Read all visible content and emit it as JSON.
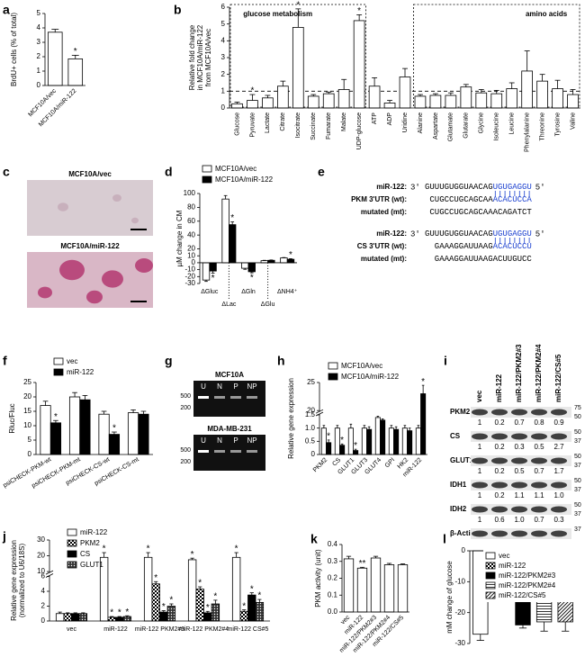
{
  "chart_data": [
    {
      "panel": "a",
      "type": "bar",
      "ylabel": "BrdU+ cells (% of total)",
      "categories": [
        "MCF10A/vec",
        "MCF10A/miR-122"
      ],
      "values": [
        3.7,
        1.85
      ],
      "errors": [
        0.2,
        0.25
      ],
      "stars": [
        null,
        "*"
      ],
      "color": "#ffffff",
      "ylim": [
        0,
        5
      ],
      "yticks": [
        0,
        1,
        2,
        3,
        4,
        5
      ]
    },
    {
      "panel": "b",
      "type": "bar",
      "ylabel": [
        "Relative fold change",
        "in MCF10A/miR-122",
        "from MCF10A/vec"
      ],
      "categories": [
        "Glucose",
        "Pyruvate",
        "Lactate",
        "Citrate",
        "Isocitrate",
        "Succinate",
        "Fumarate",
        "Malate",
        "UDP-glucose",
        "ATP",
        "ADP",
        "Uridine",
        "Alanine",
        "Aspartate",
        "Glutamate",
        "Glutarate",
        "Glycine",
        "Isoleucine",
        "Leucine",
        "Phenylalanine",
        "Threonine",
        "Tyrosine",
        "Valine"
      ],
      "values": [
        0.25,
        0.45,
        0.6,
        1.3,
        4.8,
        0.7,
        0.85,
        1.1,
        5.2,
        1.3,
        0.3,
        1.85,
        0.7,
        0.75,
        0.75,
        1.25,
        0.9,
        0.85,
        1.15,
        2.2,
        1.6,
        1.15,
        0.8
      ],
      "errors": [
        0.1,
        0.35,
        0.15,
        0.3,
        1.1,
        0.1,
        0.1,
        0.6,
        0.35,
        0.5,
        0.15,
        0.5,
        0.1,
        0.1,
        0.15,
        0.15,
        0.2,
        0.2,
        0.35,
        1.2,
        0.4,
        0.5,
        0.3
      ],
      "stars": [
        null,
        "*",
        null,
        null,
        "*",
        null,
        null,
        null,
        "*",
        null,
        null,
        null,
        null,
        null,
        null,
        null,
        null,
        null,
        null,
        null,
        null,
        null,
        null
      ],
      "color": "#ffffff",
      "ylim": [
        0,
        6
      ],
      "yticks": [
        0,
        1,
        2,
        3,
        4,
        5,
        6
      ],
      "reference_line": 1,
      "groups": [
        "glucose metabolism",
        "amino acids"
      ]
    },
    {
      "panel": "d",
      "type": "bar",
      "ylabel": "µM change in CM",
      "categories": [
        "ΔGluc",
        "ΔLac",
        "ΔGln",
        "ΔGlu",
        "ΔNH4⁺"
      ],
      "series": [
        {
          "name": "MCF10A/vec",
          "color": "#ffffff",
          "values": [
            -25,
            92,
            -8,
            3,
            7
          ],
          "errors": [
            2,
            5,
            1.5,
            0.5,
            0.5
          ],
          "stars": [
            null,
            null,
            null,
            null,
            null
          ]
        },
        {
          "name": "MCF10A/miR-122",
          "color": "#000000",
          "values": [
            -12,
            55,
            -13,
            3.5,
            5
          ],
          "errors": [
            3,
            4,
            1.5,
            0.5,
            0.8
          ],
          "stars": [
            "*",
            "*",
            "*",
            null,
            "*"
          ]
        }
      ],
      "ylim": [
        -30,
        100
      ],
      "yticks": [
        -30,
        -20,
        -10,
        0,
        10,
        20,
        40,
        60,
        80,
        100
      ]
    },
    {
      "panel": "f",
      "type": "bar",
      "ylabel": "Rluc/Fluc",
      "categories": [
        "psiCHECK-PKM-wt",
        "psiCHECK-PKM-mt",
        "psiCHECK-CS-wt",
        "psiCHECK-CS-mt"
      ],
      "series": [
        {
          "name": "vec",
          "color": "#ffffff",
          "values": [
            17,
            20,
            14,
            14.5
          ],
          "errors": [
            1.5,
            1.5,
            1,
            1
          ],
          "stars": [
            null,
            null,
            null,
            null
          ]
        },
        {
          "name": "miR-122",
          "color": "#000000",
          "values": [
            11,
            19,
            7,
            14
          ],
          "errors": [
            0.8,
            1.5,
            0.8,
            1
          ],
          "stars": [
            "*",
            null,
            "*",
            null
          ]
        }
      ],
      "ylim": [
        0,
        25
      ],
      "yticks": [
        0,
        5,
        10,
        15,
        20,
        25
      ]
    },
    {
      "panel": "h",
      "type": "bar",
      "ylabel": "Relative gene expression",
      "categories": [
        "PKM2",
        "CS",
        "GLUT1",
        "GLUT3",
        "GLUT4",
        "GPI",
        "HK2",
        "miR-122"
      ],
      "series": [
        {
          "name": "MCF10A/vec",
          "color": "#ffffff",
          "values": [
            1,
            1,
            1,
            1,
            1.4,
            1,
            1,
            1
          ],
          "errors": [
            0.1,
            0.1,
            0.15,
            0.1,
            0.05,
            0.1,
            0.1,
            0.1
          ],
          "stars": [
            null,
            null,
            null,
            null,
            null,
            null,
            null,
            null
          ]
        },
        {
          "name": "MCF10A/miR-122",
          "color": "#000000",
          "values": [
            0.45,
            0.35,
            0.15,
            0.95,
            1.3,
            0.95,
            0.9,
            23
          ],
          "errors": [
            0.1,
            0.05,
            0.05,
            0.1,
            0.05,
            0.1,
            0.1,
            1.5
          ],
          "stars": [
            "*",
            "*",
            "*",
            null,
            null,
            null,
            null,
            "*"
          ]
        }
      ],
      "ylim": [
        0,
        25
      ],
      "yticks": [
        0,
        0.5,
        {
          "value": 1,
          "label": "1.0"
        },
        1.5,
        20,
        25
      ],
      "ybreak": [
        1.5,
        20
      ]
    },
    {
      "panel": "j",
      "type": "bar",
      "ylabel": [
        "Relative gene expression",
        "(normalized to U6/18S)"
      ],
      "categories": [
        "vec",
        "miR-122",
        "miR-122 PKM2#3",
        "miR-122 PKM2#4",
        "miR-122 CS#5"
      ],
      "series": [
        {
          "name": "miR-122",
          "color": "#ffffff",
          "values": [
            1,
            19,
            19,
            17.5,
            19
          ],
          "errors": [
            0.2,
            3,
            3,
            1,
            3
          ],
          "stars": [
            null,
            "*",
            "*",
            "*",
            "*"
          ]
        },
        {
          "name": "PKM2",
          "color": "#ffffff",
          "pattern": "checker",
          "values": [
            1,
            0.5,
            5,
            4.3,
            1.3
          ],
          "errors": [
            0.1,
            0.1,
            0.3,
            0.3,
            0.2
          ],
          "stars": [
            null,
            "*",
            "*",
            "*",
            "*"
          ]
        },
        {
          "name": "CS",
          "color": "#000000",
          "values": [
            1,
            0.5,
            1.2,
            1.1,
            3.5
          ],
          "errors": [
            0.1,
            0.1,
            0.2,
            0.2,
            0.3
          ],
          "stars": [
            null,
            "*",
            "*",
            "*",
            "*"
          ]
        },
        {
          "name": "GLUT1",
          "color": "#333333",
          "pattern": "dots",
          "values": [
            1,
            0.6,
            2,
            2.3,
            2.5
          ],
          "errors": [
            0.1,
            0.1,
            0.3,
            0.5,
            0.4
          ],
          "stars": [
            null,
            "*",
            "*",
            "*",
            "*"
          ]
        }
      ],
      "ylim": [
        0,
        30
      ],
      "yticks": [
        0,
        2,
        4,
        6,
        10,
        20,
        30
      ],
      "ybreak": [
        6,
        10
      ]
    },
    {
      "panel": "k",
      "type": "bar",
      "ylabel": "PKM activity (unit)",
      "categories": [
        "vec",
        "miR-122",
        "miR-122/PKM2#3",
        "miR-122/PKM2#4",
        "miR-122/CS#5"
      ],
      "values": [
        0.315,
        0.26,
        0.32,
        0.28,
        0.28
      ],
      "errors": [
        0.015,
        0.005,
        0.01,
        0.008,
        0.005
      ],
      "stars": [
        null,
        "**",
        null,
        null,
        null
      ],
      "color": "#ffffff",
      "ylim": [
        0,
        0.4
      ],
      "yticks": [
        {
          "value": 0,
          "label": "0.0"
        },
        0.1,
        0.2,
        0.3,
        0.4
      ]
    },
    {
      "panel": "l",
      "type": "bar",
      "ylabel": "mM change of glucose",
      "categories": [
        "vec",
        "miR-122",
        "miR-122/PKM2#3",
        "miR-122/PKM2#4",
        "miR-122/CS#5"
      ],
      "values": [
        -27,
        -12,
        -24,
        -23,
        -23
      ],
      "errors": [
        2,
        2.5,
        1,
        3,
        3
      ],
      "stars": [
        null,
        "*",
        null,
        null,
        null
      ],
      "colors": [
        "#ffffff",
        "#ffffff",
        "#000000",
        "#ffffff",
        "#ffffff"
      ],
      "patterns": [
        null,
        "checker",
        null,
        "hlines",
        "diag"
      ],
      "legend": true,
      "ylim": [
        -30,
        0
      ],
      "yticks": [
        -30,
        -20,
        -10,
        0
      ]
    }
  ],
  "images": {
    "panel": "c",
    "labels": [
      "MCF10A/vec",
      "MCF10A/miR-122"
    ]
  },
  "sequences": {
    "panel": "e",
    "blocks": [
      {
        "rows": [
          {
            "label": "miR-122:",
            "prefix": "3'",
            "seq": "GUUUGUGGUAACAG",
            "highlight": "UGUGAGGU",
            "suffix": "5'"
          },
          {
            "label": "PKM 3'UTR (wt):",
            "seq": "CUGCCUGCAGCAA",
            "highlight": "ACACUCCA"
          },
          {
            "label": "mutated (mt):",
            "seq": "CUGCCUGCAGCAAACAGATCT"
          }
        ]
      },
      {
        "rows": [
          {
            "label": "miR-122:",
            "prefix": "3'",
            "seq": "GUUUGUGGUAACAG",
            "highlight": "UGUGAGGU",
            "suffix": "5'"
          },
          {
            "label": "CS 3'UTR (wt):",
            "seq": "GAAAGGAUUAAG",
            "highlight": "ACACUCCU"
          },
          {
            "label": "mutated (mt):",
            "seq": "GAAAGGAUUAAGACUUGUCC"
          }
        ]
      }
    ]
  },
  "gels": {
    "panel": "g",
    "blots": [
      {
        "title": "MCF10A",
        "lanes": [
          "U",
          "N",
          "P",
          "NP"
        ],
        "markers": [
          "500",
          "200"
        ]
      },
      {
        "title": "MDA-MB-231",
        "lanes": [
          "U",
          "N",
          "P",
          "NP"
        ],
        "markers": [
          "500",
          "200"
        ]
      }
    ]
  },
  "blot": {
    "panel": "i",
    "lanes": [
      "vec",
      "miR-122",
      "miR-122/PKM2#3",
      "miR-122/PKM2#4",
      "miR-122/CS#5"
    ],
    "rows": [
      {
        "protein": "PKM2",
        "quant": [
          "1",
          "0.2",
          "0.7",
          "0.8",
          "0.9"
        ],
        "markers": [
          "75",
          "50"
        ]
      },
      {
        "protein": "CS",
        "quant": [
          "1",
          "0.2",
          "0.3",
          "0.5",
          "2.7"
        ],
        "markers": [
          "50",
          "37"
        ]
      },
      {
        "protein": "GLUT1",
        "quant": [
          "1",
          "0.2",
          "0.5",
          "0.7",
          "1.7"
        ],
        "markers": [
          "50",
          "37"
        ]
      },
      {
        "protein": "IDH1",
        "quant": [
          "1",
          "0.2",
          "1.1",
          "1.1",
          "1.0"
        ],
        "markers": [
          "50",
          "37"
        ]
      },
      {
        "protein": "IDH2",
        "quant": [
          "1",
          "0.6",
          "1.0",
          "0.7",
          "0.3"
        ],
        "markers": [
          "50",
          "37"
        ]
      },
      {
        "protein": "β-Actin",
        "markers": [
          "37"
        ]
      }
    ]
  }
}
